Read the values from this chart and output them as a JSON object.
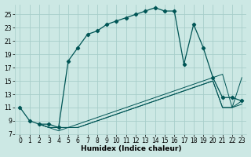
{
  "bg_color": "#cce8e4",
  "grid_color": "#a8ceca",
  "line_color": "#005555",
  "xlabel": "Humidex (Indice chaleur)",
  "xlim": [
    -0.5,
    23.5
  ],
  "ylim": [
    7,
    26.5
  ],
  "xticks": [
    0,
    1,
    2,
    3,
    4,
    5,
    6,
    7,
    8,
    9,
    10,
    11,
    12,
    13,
    14,
    15,
    16,
    17,
    18,
    19,
    20,
    21,
    22,
    23
  ],
  "yticks": [
    7,
    9,
    11,
    13,
    15,
    17,
    19,
    21,
    23,
    25
  ],
  "series1_x": [
    0,
    1,
    2,
    3,
    4,
    5,
    6,
    7,
    8,
    9,
    10,
    11,
    12,
    13,
    14,
    15,
    16,
    17,
    18,
    19,
    20,
    21,
    22,
    23
  ],
  "series1_y": [
    11,
    9,
    8.5,
    8.5,
    8,
    18,
    20,
    22,
    22.5,
    23.5,
    24,
    24.5,
    25,
    25.5,
    26,
    25.5,
    25.5,
    17.5,
    23.5,
    20,
    15.5,
    12.5,
    12.5,
    12
  ],
  "series2_x": [
    2,
    3,
    4,
    5,
    6,
    7,
    8,
    9,
    10,
    11,
    12,
    13,
    14,
    15,
    16,
    17,
    18,
    19,
    20,
    21,
    22,
    23
  ],
  "series2_y": [
    8.5,
    8,
    8,
    8,
    8.5,
    9,
    9.5,
    10,
    10.5,
    11,
    11.5,
    12,
    12.5,
    13,
    13.5,
    14,
    14.5,
    15,
    15.5,
    16,
    11,
    15.5
  ],
  "series3_x": [
    2,
    3,
    4,
    5,
    6,
    7,
    8,
    9,
    10,
    11,
    12,
    13,
    14,
    15,
    16,
    17,
    18,
    19,
    20,
    21,
    22,
    23
  ],
  "series3_y": [
    8.5,
    8,
    8,
    8,
    8,
    8.5,
    9,
    9.5,
    10,
    10.5,
    11,
    11.5,
    12,
    12.5,
    13,
    13.5,
    14,
    14.5,
    15,
    11,
    11,
    12
  ],
  "series4_x": [
    2,
    3,
    4,
    5,
    6,
    7,
    8,
    9,
    10,
    11,
    12,
    13,
    14,
    15,
    16,
    17,
    18,
    19,
    20,
    21,
    22,
    23
  ],
  "series4_y": [
    8.5,
    8,
    7.5,
    8,
    8,
    8.5,
    9,
    9.5,
    10,
    10.5,
    11,
    11.5,
    12,
    12.5,
    13,
    13.5,
    14,
    14.5,
    15,
    11,
    11,
    11.5
  ],
  "tick_fontsize": 5.5,
  "xlabel_fontsize": 6.5
}
